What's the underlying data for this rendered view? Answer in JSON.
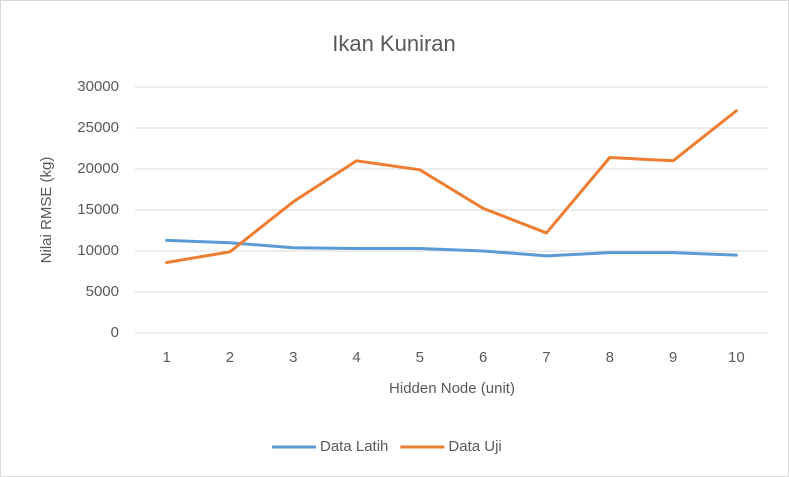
{
  "chart_data": {
    "type": "line",
    "title": "Ikan Kuniran",
    "x_label": "Hidden Node (unit)",
    "y_label": "Nilai RMSE (kg)",
    "categories": [
      "1",
      "2",
      "3",
      "4",
      "5",
      "6",
      "7",
      "8",
      "9",
      "10"
    ],
    "series": [
      {
        "name": "Data Latih",
        "color": "#5b9bd5",
        "values": [
          11300,
          11000,
          10400,
          10300,
          10300,
          10000,
          9400,
          9800,
          9800,
          9500
        ]
      },
      {
        "name": "Data Uji",
        "color": "#ed7d31",
        "values": [
          8600,
          9900,
          16000,
          21000,
          19900,
          15200,
          12200,
          21400,
          21000,
          27100
        ]
      }
    ],
    "ylim": [
      0,
      30000
    ],
    "yticks": [
      0,
      5000,
      10000,
      15000,
      20000,
      25000,
      30000
    ],
    "grid": true,
    "legend": "bottom"
  }
}
